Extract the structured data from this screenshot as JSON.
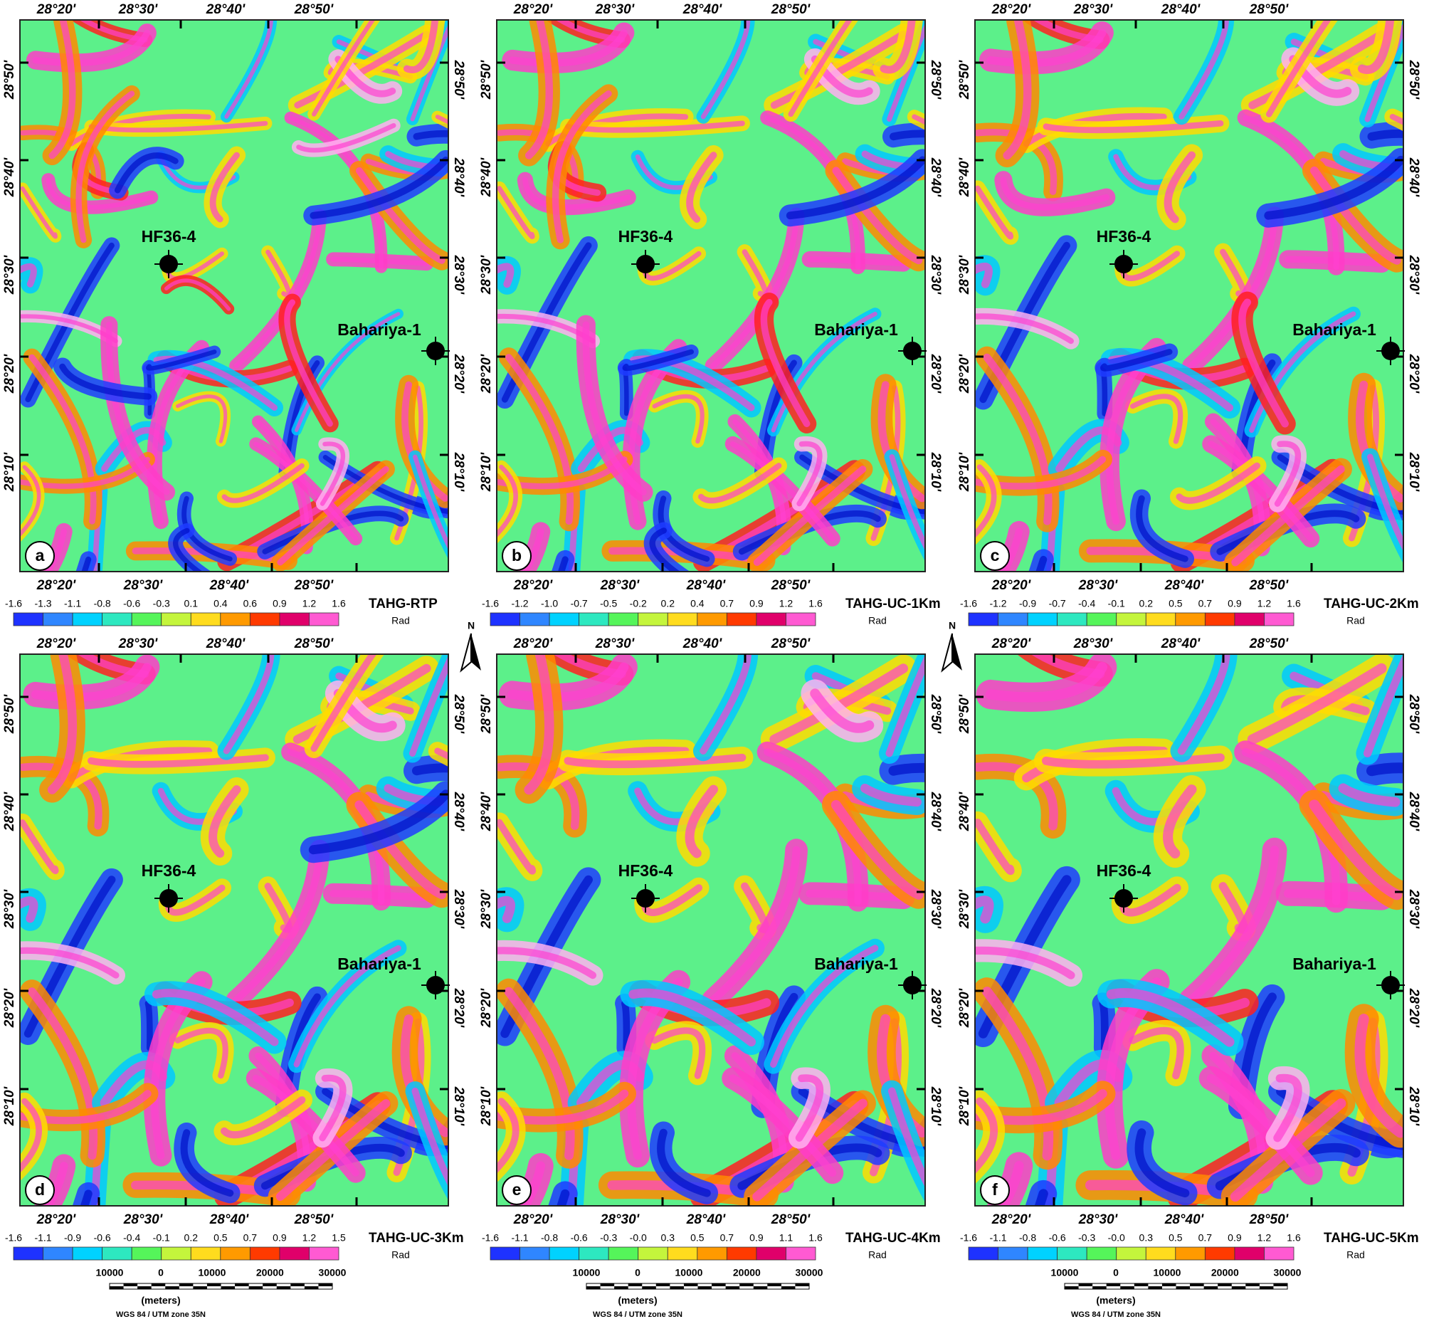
{
  "lon_labels": [
    "28°20'",
    "28°30'",
    "28°40'",
    "28°50'"
  ],
  "lat_labels": [
    "28°50'",
    "28°40'",
    "28°30'",
    "28°20'",
    "28°10'"
  ],
  "wells": [
    "HF36-4",
    "Bahariya-1"
  ],
  "north": "N",
  "unit": "Rad",
  "panels": [
    {
      "letter": "a",
      "title": "TAHG-RTP",
      "colorbar_labels": [
        "-1.6",
        "-1.3",
        "-1.1",
        "-0.8",
        "-0.6",
        "-0.3",
        "0.1",
        "0.4",
        "0.6",
        "0.9",
        "1.2",
        "1.6"
      ]
    },
    {
      "letter": "b",
      "title": "TAHG-UC-1Km",
      "colorbar_labels": [
        "-1.6",
        "-1.2",
        "-1.0",
        "-0.7",
        "-0.5",
        "-0.2",
        "0.2",
        "0.4",
        "0.7",
        "0.9",
        "1.2",
        "1.6"
      ]
    },
    {
      "letter": "c",
      "title": "TAHG-UC-2Km",
      "colorbar_labels": [
        "-1.6",
        "-1.2",
        "-0.9",
        "-0.7",
        "-0.4",
        "-0.1",
        "0.2",
        "0.5",
        "0.7",
        "0.9",
        "1.2",
        "1.6"
      ]
    },
    {
      "letter": "d",
      "title": "TAHG-UC-3Km",
      "colorbar_labels": [
        "-1.6",
        "-1.1",
        "-0.9",
        "-0.6",
        "-0.4",
        "-0.1",
        "0.2",
        "0.5",
        "0.7",
        "0.9",
        "1.2",
        "1.5"
      ]
    },
    {
      "letter": "e",
      "title": "TAHG-UC-4Km",
      "colorbar_labels": [
        "-1.6",
        "-1.1",
        "-0.8",
        "-0.6",
        "-0.3",
        "-0.0",
        "0.3",
        "0.5",
        "0.7",
        "0.9",
        "1.1",
        "1.6"
      ]
    },
    {
      "letter": "f",
      "title": "TAHG-UC-5Km",
      "colorbar_labels": [
        "-1.6",
        "-1.1",
        "-0.8",
        "-0.6",
        "-0.3",
        "-0.0",
        "0.3",
        "0.5",
        "0.7",
        "0.9",
        "1.2",
        "1.6"
      ]
    }
  ],
  "scale_bar": {
    "labels": [
      "10000",
      "0",
      "10000",
      "20000",
      "30000"
    ],
    "unit": "(meters)",
    "projection": "WGS 84 / UTM zone 35N"
  }
}
